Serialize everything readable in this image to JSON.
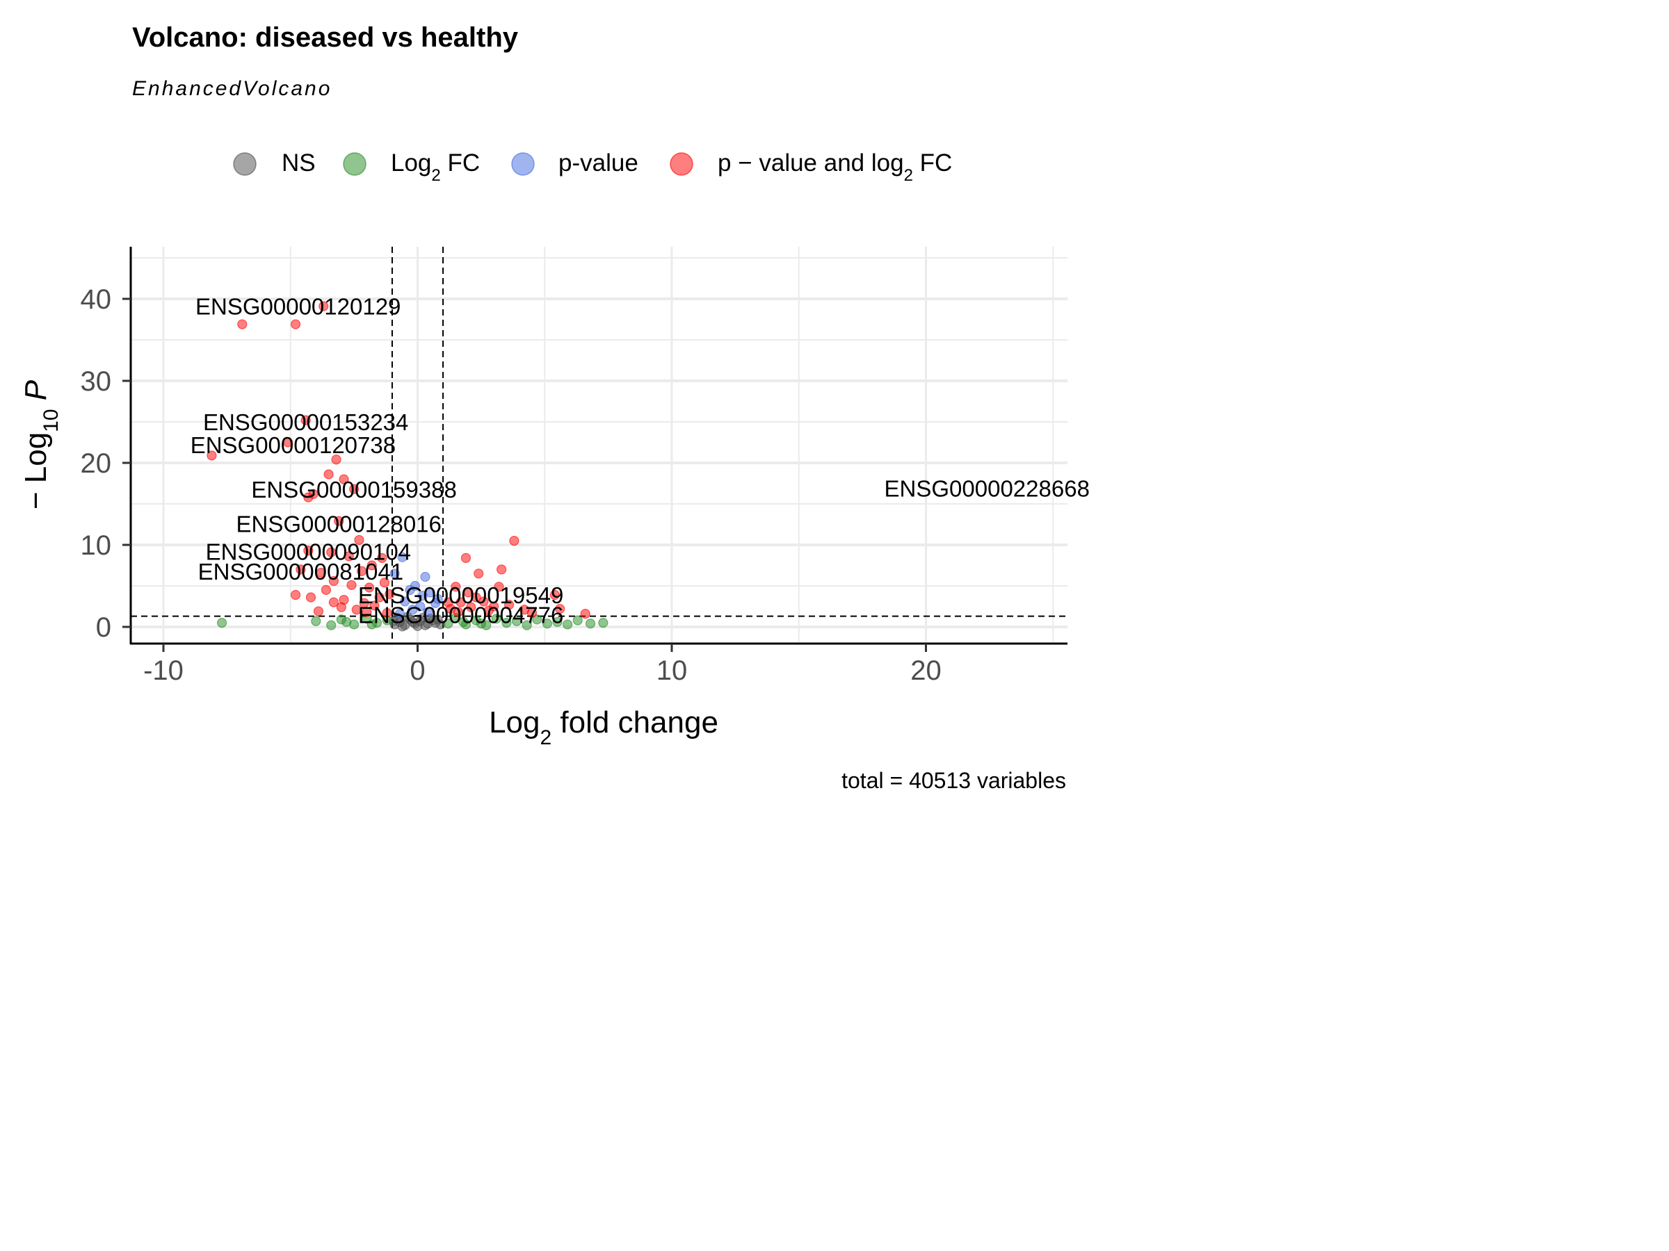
{
  "chart_data": {
    "type": "scatter",
    "title": "Volcano: diseased vs healthy",
    "subtitle": "EnhancedVolcano",
    "caption": "total = 40513 variables",
    "xlabel": "fold change",
    "xlabel_prefix": "Log",
    "xlabel_sub": "2",
    "ylabel_prefix": "− Log",
    "ylabel_sub": "10",
    "ylabel_var": "P",
    "xlim": [
      -10,
      25
    ],
    "ylim": [
      0,
      45
    ],
    "x_ticks": [
      -10,
      0,
      10,
      20
    ],
    "y_ticks": [
      0,
      10,
      20,
      30,
      40
    ],
    "x_tick_labels": [
      "-10",
      "0",
      "10",
      "20"
    ],
    "y_tick_labels": [
      "0",
      "10",
      "20",
      "30",
      "40"
    ],
    "grid": true,
    "legend_position": "top",
    "cutoffs": {
      "log2fc": [
        -1,
        1
      ],
      "neg_log10_p": 1.3
    },
    "legend": [
      {
        "key": "NS",
        "parts": [
          "NS"
        ],
        "color": "#4d4d4d"
      },
      {
        "key": "FC",
        "parts": [
          "Log",
          "2",
          " FC"
        ],
        "color": "#228b22"
      },
      {
        "key": "P",
        "parts": [
          "p-value"
        ],
        "color": "#4169e1"
      },
      {
        "key": "FC_P",
        "parts": [
          "p − value and log",
          "2",
          " FC"
        ],
        "color": "#ff0000"
      }
    ],
    "series": [
      {
        "key": "NS",
        "color": "#4d4d4d",
        "points": [
          [
            -0.9,
            0.3
          ],
          [
            -0.7,
            0.6
          ],
          [
            -0.5,
            0.2
          ],
          [
            -0.3,
            0.9
          ],
          [
            -0.1,
            0.4
          ],
          [
            0.1,
            0.7
          ],
          [
            0.3,
            0.2
          ],
          [
            0.5,
            1.0
          ],
          [
            0.7,
            0.5
          ],
          [
            0.9,
            0.3
          ],
          [
            -0.8,
            1.1
          ],
          [
            -0.4,
            1.2
          ],
          [
            0.0,
            0.1
          ],
          [
            0.2,
            1.1
          ],
          [
            0.6,
            0.8
          ],
          [
            -0.6,
            0.05
          ],
          [
            0.4,
            0.4
          ],
          [
            -0.2,
            0.6
          ],
          [
            0.8,
            0.9
          ],
          [
            -0.95,
            0.7
          ]
        ]
      },
      {
        "key": "FC",
        "color": "#228b22",
        "points": [
          [
            -7.7,
            0.5
          ],
          [
            -4.0,
            0.7
          ],
          [
            -3.4,
            0.2
          ],
          [
            -3.0,
            0.9
          ],
          [
            -2.5,
            0.3
          ],
          [
            -2.0,
            1.0
          ],
          [
            -1.6,
            0.5
          ],
          [
            -1.2,
            0.8
          ],
          [
            1.2,
            0.4
          ],
          [
            1.5,
            1.1
          ],
          [
            1.9,
            0.3
          ],
          [
            2.3,
            0.8
          ],
          [
            2.7,
            0.2
          ],
          [
            3.1,
            1.0
          ],
          [
            3.5,
            0.5
          ],
          [
            3.9,
            0.7
          ],
          [
            4.3,
            0.2
          ],
          [
            4.7,
            0.9
          ],
          [
            5.1,
            0.4
          ],
          [
            5.5,
            0.6
          ],
          [
            5.9,
            0.3
          ],
          [
            6.3,
            0.8
          ],
          [
            6.8,
            0.4
          ],
          [
            7.3,
            0.5
          ],
          [
            1.8,
            0.6
          ],
          [
            2.5,
            0.4
          ],
          [
            -2.8,
            0.6
          ],
          [
            -1.8,
            0.3
          ]
        ]
      },
      {
        "key": "P",
        "color": "#4169e1",
        "points": [
          [
            -0.6,
            8.5
          ],
          [
            0.3,
            6.1
          ],
          [
            -0.9,
            6.5
          ],
          [
            -0.3,
            4.5
          ],
          [
            0.2,
            3.8
          ],
          [
            0.5,
            4.2
          ],
          [
            -0.5,
            3.1
          ],
          [
            0.1,
            2.5
          ],
          [
            0.7,
            2.9
          ],
          [
            -0.2,
            2.1
          ],
          [
            0.4,
            1.8
          ],
          [
            -0.7,
            1.6
          ],
          [
            0.8,
            3.4
          ],
          [
            -0.1,
            5.0
          ]
        ]
      },
      {
        "key": "FC_P",
        "color": "#ff0000",
        "points": [
          [
            -6.9,
            36.9
          ],
          [
            -4.8,
            36.9
          ],
          [
            -3.7,
            39.1
          ],
          [
            -4.4,
            25.2
          ],
          [
            -5.1,
            22.5
          ],
          [
            -8.1,
            20.9
          ],
          [
            -3.2,
            20.4
          ],
          [
            -3.5,
            18.6
          ],
          [
            -2.9,
            18.0
          ],
          [
            -2.5,
            16.8
          ],
          [
            -4.1,
            16.2
          ],
          [
            -4.3,
            15.8
          ],
          [
            -3.1,
            12.9
          ],
          [
            -2.3,
            10.6
          ],
          [
            -4.3,
            9.3
          ],
          [
            -3.4,
            9.1
          ],
          [
            -2.7,
            8.6
          ],
          [
            -4.6,
            7.0
          ],
          [
            -3.8,
            6.6
          ],
          [
            -2.2,
            6.8
          ],
          [
            -1.8,
            7.5
          ],
          [
            -1.4,
            8.4
          ],
          [
            -3.3,
            5.6
          ],
          [
            -2.6,
            5.1
          ],
          [
            -1.9,
            4.8
          ],
          [
            -1.3,
            5.4
          ],
          [
            -4.8,
            3.9
          ],
          [
            -4.2,
            3.6
          ],
          [
            -3.6,
            4.5
          ],
          [
            -2.9,
            3.3
          ],
          [
            -2.1,
            2.9
          ],
          [
            -1.5,
            3.6
          ],
          [
            -3.9,
            1.9
          ],
          [
            -3.0,
            2.4
          ],
          [
            -2.4,
            2.1
          ],
          [
            -1.7,
            2.6
          ],
          [
            -1.2,
            1.7
          ],
          [
            1.3,
            2.2
          ],
          [
            1.5,
            4.9
          ],
          [
            1.7,
            3.0
          ],
          [
            1.9,
            8.4
          ],
          [
            2.1,
            2.4
          ],
          [
            2.3,
            3.6
          ],
          [
            2.4,
            6.5
          ],
          [
            2.8,
            2.0
          ],
          [
            3.2,
            4.9
          ],
          [
            3.3,
            7.0
          ],
          [
            3.6,
            2.7
          ],
          [
            3.8,
            10.5
          ],
          [
            4.2,
            2.1
          ],
          [
            5.4,
            3.9
          ],
          [
            5.6,
            2.2
          ],
          [
            6.6,
            1.6
          ],
          [
            1.2,
            3.0
          ],
          [
            1.6,
            1.8
          ],
          [
            2.0,
            4.2
          ],
          [
            2.6,
            3.1
          ],
          [
            3.0,
            2.5
          ],
          [
            4.5,
            1.7
          ],
          [
            -1.1,
            4.0
          ],
          [
            -2.0,
            1.8
          ],
          [
            -3.3,
            3.0
          ]
        ]
      }
    ],
    "labels": [
      {
        "text": "ENSG00000120129",
        "x": -4.7,
        "y": 39.1
      },
      {
        "text": "ENSG00000153234",
        "x": -4.4,
        "y": 25.0
      },
      {
        "text": "ENSG00000120738",
        "x": -4.9,
        "y": 22.2
      },
      {
        "text": "ENSG00000159388",
        "x": -2.5,
        "y": 16.8
      },
      {
        "text": "ENSG00000128016",
        "x": -3.1,
        "y": 12.6
      },
      {
        "text": "ENSG00000090104",
        "x": -4.3,
        "y": 9.2
      },
      {
        "text": "ENSG00000081041",
        "x": -4.6,
        "y": 6.8
      },
      {
        "text": "ENSG00000019549",
        "x": 1.7,
        "y": 3.9
      },
      {
        "text": "ENSG00000004776",
        "x": 1.7,
        "y": 1.5
      },
      {
        "text": "ENSG00000228668",
        "x": 22.4,
        "y": 16.9
      }
    ]
  }
}
